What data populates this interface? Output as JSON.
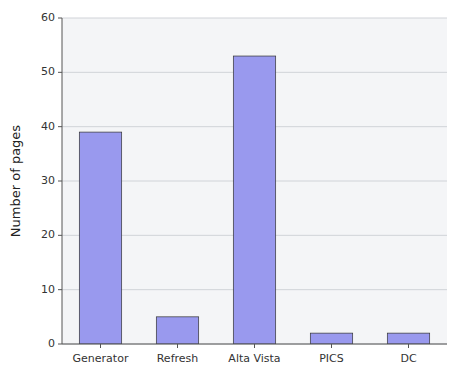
{
  "chart_data": {
    "type": "bar",
    "categories": [
      "Generator",
      "Refresh",
      "Alta Vista",
      "PICS",
      "DC"
    ],
    "values": [
      39,
      5,
      53,
      2,
      2
    ],
    "color": "#9999ee",
    "ylabel": "Number of pages",
    "ylim": [
      0,
      60
    ],
    "yticks": [
      0,
      10,
      20,
      30,
      40,
      50,
      60
    ],
    "grid": true
  }
}
